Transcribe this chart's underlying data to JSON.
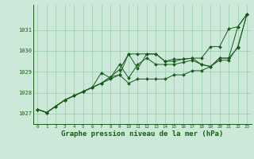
{
  "xlabel": "Graphe pression niveau de la mer (hPa)",
  "background_color": "#cce8d8",
  "grid_color": "#99ccaa",
  "line_color": "#1a5c1a",
  "x_ticks": [
    0,
    1,
    2,
    3,
    4,
    5,
    6,
    7,
    8,
    9,
    10,
    11,
    12,
    13,
    14,
    15,
    16,
    17,
    18,
    19,
    20,
    21,
    22,
    23
  ],
  "ylim": [
    1026.5,
    1032.2
  ],
  "yticks": [
    1027,
    1028,
    1029,
    1030,
    1031
  ],
  "series": [
    [
      1027.2,
      1027.05,
      1027.35,
      1027.65,
      1027.85,
      1028.05,
      1028.25,
      1028.45,
      1028.75,
      1029.1,
      1029.85,
      1029.85,
      1029.85,
      1029.85,
      1029.5,
      1029.6,
      1029.6,
      1029.65,
      1029.65,
      1030.2,
      1030.2,
      1031.05,
      1031.15,
      1031.75
    ],
    [
      1027.2,
      1027.05,
      1027.35,
      1027.65,
      1027.85,
      1028.05,
      1028.25,
      1028.95,
      1028.7,
      1029.35,
      1028.7,
      1029.35,
      1029.65,
      1029.35,
      1029.35,
      1029.35,
      1029.45,
      1029.55,
      1029.35,
      1029.25,
      1029.65,
      1029.65,
      1030.15,
      1031.75
    ],
    [
      1027.2,
      1027.05,
      1027.35,
      1027.65,
      1027.85,
      1028.05,
      1028.25,
      1028.45,
      1028.65,
      1028.85,
      1028.45,
      1028.65,
      1028.65,
      1028.65,
      1028.65,
      1028.85,
      1028.85,
      1029.05,
      1029.05,
      1029.25,
      1029.55,
      1029.55,
      1030.2,
      1031.75
    ],
    [
      1027.2,
      1027.05,
      1027.35,
      1027.65,
      1027.85,
      1028.05,
      1028.25,
      1028.45,
      1028.75,
      1028.85,
      1029.85,
      1029.15,
      1029.85,
      1029.85,
      1029.5,
      1029.5,
      1029.6,
      1029.65,
      1029.35,
      1029.25,
      1029.65,
      1029.65,
      1031.15,
      1031.75
    ]
  ],
  "xlabel_fontsize": 6.5,
  "xtick_fontsize": 4.2,
  "ytick_fontsize": 5.0,
  "linewidth": 0.7,
  "markersize": 2.0
}
